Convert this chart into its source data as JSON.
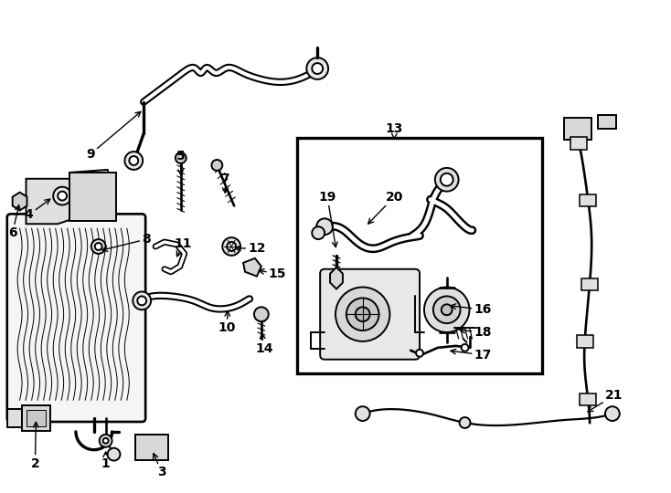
{
  "bg": "#ffffff",
  "lc": "#000000",
  "lw": 1.4,
  "fig_w": 7.34,
  "fig_h": 5.4,
  "dpi": 100
}
